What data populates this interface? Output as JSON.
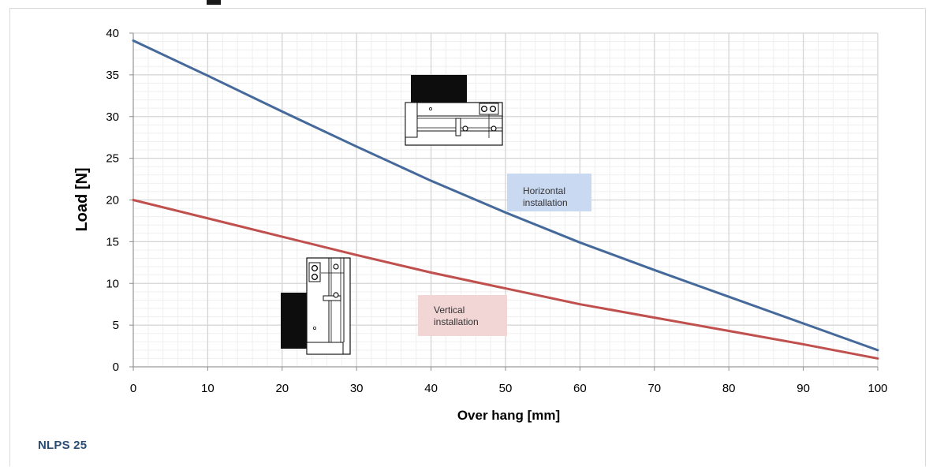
{
  "chart_data": {
    "type": "line",
    "x": [
      0,
      10,
      20,
      30,
      40,
      50,
      60,
      70,
      80,
      90,
      100
    ],
    "series": [
      {
        "name": "Horizontal installation",
        "values": [
          39.1,
          34.9,
          30.6,
          26.4,
          22.3,
          18.5,
          14.9,
          11.6,
          8.4,
          5.2,
          2.0
        ],
        "color": "#44699a"
      },
      {
        "name": "Vertical installation",
        "values": [
          20.0,
          17.8,
          15.6,
          13.4,
          11.3,
          9.4,
          7.5,
          5.9,
          4.3,
          2.7,
          1.0
        ],
        "color": "#c0504d"
      }
    ],
    "xlabel": "Over hang [mm]",
    "ylabel": "Load  [N]",
    "xlim": [
      0,
      100
    ],
    "ylim": [
      0,
      40
    ],
    "x_ticks": [
      "0",
      "10",
      "20",
      "30",
      "40",
      "50",
      "60",
      "70",
      "80",
      "90",
      "100"
    ],
    "y_ticks": [
      "0",
      "5",
      "10",
      "15",
      "20",
      "25",
      "30",
      "35",
      "40"
    ],
    "grid": true,
    "minor_grid": true,
    "annotations": [
      {
        "text_line1": "Horizontal",
        "text_line2": "installation",
        "color": "#c9d9f1"
      },
      {
        "text_line1": "Vertical",
        "text_line2": "installation",
        "color": "#f2d5d5"
      }
    ]
  },
  "caption": "NLPS 25",
  "icons": {
    "horizontal": "horizontal-actuator-diagram-icon",
    "vertical": "vertical-actuator-diagram-icon"
  }
}
